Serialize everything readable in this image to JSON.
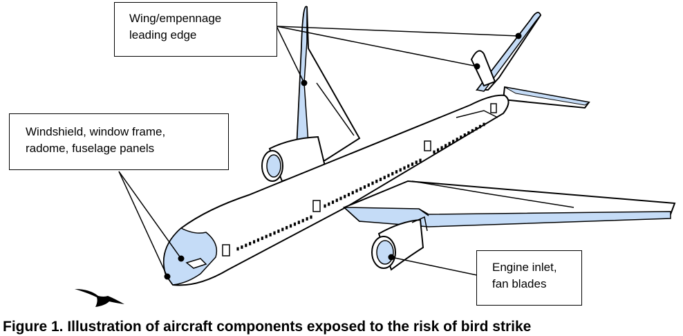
{
  "callouts": {
    "wing": {
      "lines": [
        "Wing/empennage",
        "leading edge"
      ]
    },
    "windshield": {
      "lines": [
        "Windshield, window frame,",
        "radome, fuselage panels"
      ]
    },
    "engine": {
      "lines": [
        "Engine inlet,",
        "fan blades"
      ]
    }
  },
  "caption": "Figure 1. Illustration of aircraft components exposed to the risk of bird strike",
  "colors": {
    "highlight": "#c5dcf7",
    "outline": "#000000",
    "background": "#ffffff"
  },
  "icons": [
    "aircraft-illustration",
    "bird-silhouette-icon",
    "leader-line-markers"
  ]
}
